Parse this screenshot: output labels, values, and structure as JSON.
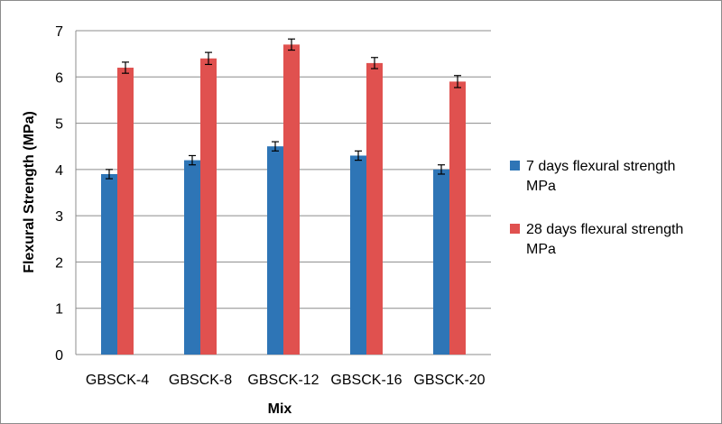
{
  "chart_data": {
    "type": "bar",
    "xlabel": "Mix",
    "ylabel": "Flexural Strength (MPa)",
    "ylim": [
      0,
      7
    ],
    "yticks": [
      0,
      1,
      2,
      3,
      4,
      5,
      6,
      7
    ],
    "grid": "horizontal",
    "legend_position": "right",
    "categories": [
      "GBSCK-4",
      "GBSCK-8",
      "GBSCK-12",
      "GBSCK-16",
      "GBSCK-20"
    ],
    "series": [
      {
        "name_lines": [
          "7 days flexural strength",
          "MPa"
        ],
        "color": "#2e75b6",
        "values": [
          3.9,
          4.2,
          4.5,
          4.3,
          4.0
        ],
        "error": [
          0.1,
          0.1,
          0.1,
          0.1,
          0.1
        ]
      },
      {
        "name_lines": [
          "28 days flexural strength",
          "MPa"
        ],
        "color": "#e0514f",
        "values": [
          6.2,
          6.4,
          6.7,
          6.3,
          5.9
        ],
        "error": [
          0.12,
          0.13,
          0.12,
          0.12,
          0.13
        ]
      }
    ]
  }
}
